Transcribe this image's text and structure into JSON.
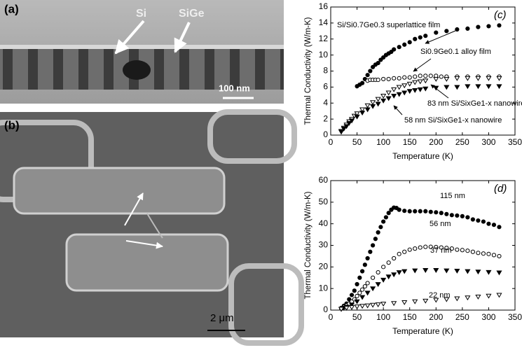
{
  "panels": [
    {
      "label": "(a)",
      "annotations": [
        "Si",
        "SiGe",
        "100 nm"
      ]
    },
    {
      "label": "(b)",
      "annotations": [
        "2 μm"
      ]
    }
  ],
  "chart_data": [
    {
      "type": "scatter",
      "label": "(c)",
      "x_label": "Temperature (K)",
      "y_label": "Thermal Conductivity (W/m-K)",
      "xlim": [
        0,
        350
      ],
      "xticks": [
        0,
        50,
        100,
        150,
        200,
        250,
        300,
        350
      ],
      "ylim": [
        0,
        16
      ],
      "yticks": [
        0,
        2,
        4,
        6,
        8,
        10,
        12,
        14,
        16
      ],
      "series": [
        {
          "name": "Si/Si0.7Ge0.3 superlattice film",
          "color": "#000000",
          "marker": "filled-circle",
          "x": [
            50,
            55,
            60,
            65,
            70,
            75,
            80,
            85,
            90,
            95,
            100,
            105,
            110,
            115,
            120,
            130,
            140,
            150,
            160,
            170,
            180,
            200,
            220,
            240,
            260,
            280,
            300,
            320
          ],
          "values": [
            6.1,
            6.3,
            6.5,
            7,
            7.5,
            8,
            8.5,
            8.8,
            9,
            9.4,
            9.7,
            10,
            10.2,
            10.4,
            10.7,
            11,
            11.3,
            11.6,
            12,
            12.2,
            12.4,
            12.8,
            13,
            13.2,
            13.3,
            13.5,
            13.6,
            13.7
          ]
        },
        {
          "name": "Si0.9Ge0.1 alloy film",
          "color": "#000000",
          "marker": "open-circle",
          "x": [
            70,
            75,
            80,
            85,
            90,
            100,
            110,
            120,
            130,
            140,
            150,
            160,
            170,
            180,
            190,
            200,
            210,
            220,
            240,
            260,
            280,
            300,
            320
          ],
          "values": [
            6.8,
            6.9,
            6.9,
            6.9,
            6.9,
            7,
            7,
            7.1,
            7.1,
            7.2,
            7.2,
            7.3,
            7.4,
            7.4,
            7.4,
            7.4,
            7.3,
            7.3,
            7.3,
            7.3,
            7.3,
            7.3,
            7.3
          ]
        },
        {
          "name": "83 nm Si/SixGe1-x nanowire",
          "color": "#000000",
          "marker": "open-triangle",
          "x": [
            20,
            25,
            30,
            35,
            40,
            45,
            50,
            60,
            70,
            80,
            90,
            100,
            110,
            120,
            130,
            140,
            150,
            160,
            170,
            180,
            200,
            220,
            240,
            260,
            280,
            300,
            320
          ],
          "values": [
            0.5,
            0.9,
            1.3,
            1.7,
            2,
            2.4,
            2.7,
            3.2,
            3.7,
            4.1,
            4.5,
            4.9,
            5.3,
            5.7,
            6,
            6.2,
            6.4,
            6.6,
            6.7,
            6.8,
            7,
            7,
            7.1,
            7.1,
            7.1,
            7.1,
            7.1
          ]
        },
        {
          "name": "58 nm Si/SixGe1-x nanowire",
          "color": "#000000",
          "marker": "filled-triangle",
          "x": [
            20,
            25,
            30,
            35,
            40,
            50,
            60,
            70,
            80,
            90,
            100,
            110,
            120,
            130,
            140,
            150,
            160,
            170,
            180,
            200,
            220,
            240,
            260,
            280,
            300,
            320
          ],
          "values": [
            0.4,
            0.8,
            1.1,
            1.5,
            1.8,
            2.3,
            2.8,
            3.2,
            3.6,
            3.9,
            4.3,
            4.6,
            4.9,
            5.1,
            5.3,
            5.5,
            5.6,
            5.7,
            5.8,
            5.9,
            6,
            6,
            6.1,
            6.1,
            6.1,
            6.1
          ]
        }
      ]
    },
    {
      "type": "scatter",
      "label": "(d)",
      "x_label": "Temperature (K)",
      "y_label": "Thermal Conductivity (W/m-K)",
      "xlim": [
        0,
        350
      ],
      "xticks": [
        0,
        50,
        100,
        150,
        200,
        250,
        300,
        350
      ],
      "ylim": [
        0,
        60
      ],
      "yticks": [
        0,
        10,
        20,
        30,
        40,
        50,
        60
      ],
      "series": [
        {
          "name": "115 nm",
          "color": "#000000",
          "marker": "filled-circle",
          "x": [
            20,
            25,
            30,
            35,
            40,
            45,
            50,
            55,
            60,
            65,
            70,
            75,
            80,
            85,
            90,
            95,
            100,
            105,
            110,
            115,
            120,
            125,
            130,
            140,
            150,
            160,
            170,
            180,
            190,
            200,
            210,
            220,
            230,
            240,
            250,
            260,
            270,
            280,
            290,
            300,
            310,
            320
          ],
          "values": [
            1,
            2,
            3,
            5,
            7,
            9,
            12,
            15,
            18,
            21,
            24,
            27,
            30,
            33,
            36,
            38.5,
            41,
            43,
            45,
            46.5,
            47.5,
            47.3,
            46.5,
            46,
            45.8,
            45.8,
            45.8,
            45.8,
            45.5,
            45.3,
            45,
            44.5,
            44,
            43.8,
            43.5,
            43,
            42,
            41.5,
            41,
            40,
            39.5,
            38.5
          ]
        },
        {
          "name": "56 nm",
          "color": "#000000",
          "marker": "open-circle",
          "x": [
            20,
            25,
            30,
            35,
            40,
            45,
            50,
            55,
            60,
            65,
            70,
            80,
            90,
            100,
            110,
            120,
            130,
            140,
            150,
            160,
            170,
            180,
            190,
            200,
            210,
            220,
            230,
            240,
            250,
            260,
            270,
            280,
            290,
            300,
            310,
            320
          ],
          "values": [
            0.8,
            1.5,
            2.2,
            3,
            4,
            5,
            6.5,
            8,
            9.5,
            11,
            12.5,
            15,
            17.5,
            20,
            22,
            24,
            26,
            27,
            28,
            28.5,
            29,
            29.3,
            29.3,
            29.2,
            29,
            28.8,
            28.5,
            28,
            27.8,
            27.5,
            27,
            26.5,
            26.2,
            26,
            25.5,
            25
          ]
        },
        {
          "name": "37 nm",
          "color": "#000000",
          "marker": "filled-triangle",
          "x": [
            20,
            25,
            30,
            40,
            50,
            60,
            70,
            80,
            90,
            100,
            110,
            120,
            130,
            140,
            160,
            180,
            200,
            220,
            240,
            260,
            280,
            300,
            320
          ],
          "values": [
            0.5,
            1,
            1.5,
            2.5,
            4,
            6,
            8,
            10,
            12,
            14,
            15.5,
            16.5,
            17.5,
            18,
            18.3,
            18.5,
            18.5,
            18.3,
            18.2,
            18,
            17.8,
            17.6,
            17.4
          ]
        },
        {
          "name": "22 nm",
          "color": "#000000",
          "marker": "open-triangle",
          "x": [
            20,
            30,
            40,
            50,
            60,
            70,
            80,
            90,
            100,
            120,
            140,
            160,
            180,
            200,
            220,
            240,
            260,
            280,
            300,
            320
          ],
          "values": [
            0.5,
            1,
            1.3,
            1.6,
            1.9,
            2.1,
            2.4,
            2.6,
            2.9,
            3.2,
            3.6,
            4,
            4.3,
            4.7,
            5,
            5.4,
            5.8,
            6.2,
            6.6,
            7
          ]
        }
      ]
    }
  ]
}
